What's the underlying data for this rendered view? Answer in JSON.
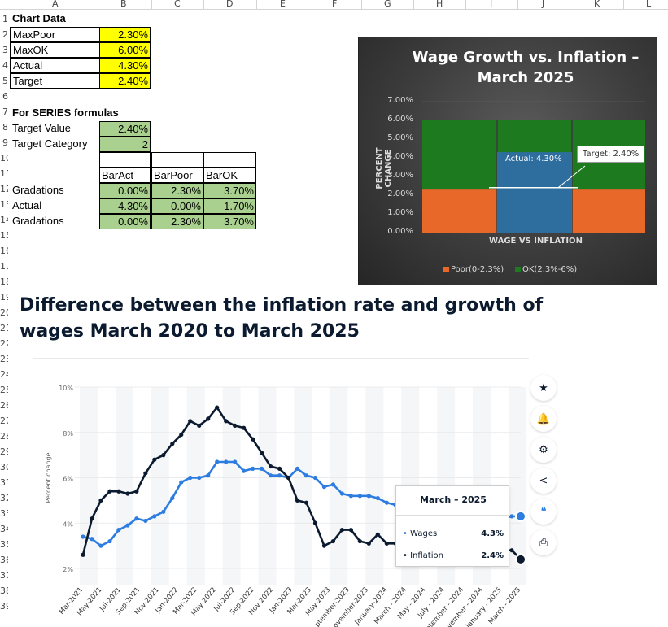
{
  "columns": [
    "A",
    "B",
    "C",
    "D",
    "E",
    "F",
    "G",
    "H",
    "I",
    "J",
    "K",
    "L"
  ],
  "row_numbers": [
    "1",
    "2",
    "3",
    "4",
    "5",
    "6",
    "7",
    "8",
    "9",
    "10",
    "11",
    "12",
    "13",
    "14",
    "15",
    "16",
    "17",
    "18",
    "19",
    "20",
    "21",
    "22",
    "23",
    "24",
    "25",
    "26",
    "27",
    "28",
    "29",
    "30",
    "31",
    "32",
    "33",
    "34",
    "35",
    "36",
    "37",
    "38",
    "39"
  ],
  "chart_data_table": {
    "header": "Chart Data",
    "rows": [
      {
        "label": "MaxPoor",
        "value": "2.30%"
      },
      {
        "label": "MaxOK",
        "value": "6.00%"
      },
      {
        "label": "Actual",
        "value": "4.30%"
      },
      {
        "label": "Target",
        "value": "2.40%"
      }
    ]
  },
  "series_table": {
    "header": "For SERIES formulas",
    "rows": [
      {
        "label": "Target Value",
        "value": "2.40%"
      },
      {
        "label": "Target Category",
        "value": "2"
      }
    ]
  },
  "bar_table": {
    "columns": [
      "BarAct",
      "BarPoor",
      "BarOK"
    ],
    "rows": [
      {
        "label": "Gradations",
        "values": [
          "0.00%",
          "2.30%",
          "3.70%"
        ]
      },
      {
        "label": "Actual",
        "values": [
          "4.30%",
          "0.00%",
          "1.70%"
        ]
      },
      {
        "label": "Gradations",
        "values": [
          "0.00%",
          "2.30%",
          "3.70%"
        ]
      }
    ]
  },
  "colors": {
    "poor": "#e8682a",
    "ok": "#1e7a1e",
    "actual": "#2e6e9e",
    "wages": "#2d7ce0",
    "inflation": "#0b1a2e",
    "yellow": "#ffff00",
    "green": "#a9d08e"
  },
  "chart_data": [
    {
      "type": "bar",
      "title": "Wage Growth vs. Inflation – March 2025",
      "xlabel": "WAGE VS INFLATION",
      "ylabel": "PERCENT CHANGE",
      "yticks": [
        "7.00%",
        "6.00%",
        "5.00%",
        "4.00%",
        "3.00%",
        "2.00%",
        "1.00%",
        "0.00%"
      ],
      "ylim": [
        0,
        7
      ],
      "poor_max": 2.3,
      "ok_max": 6.0,
      "actual": 4.3,
      "target": 2.4,
      "actual_label": "Actual: 4.30%",
      "target_label": "Target: 2.40%",
      "legend": [
        "Poor(0-2.3%)",
        "OK(2.3%-6%)"
      ],
      "legend_placement": "bottom"
    },
    {
      "type": "line",
      "title": "Difference between the inflation rate and growth of wages March 2020 to March 2025",
      "ylabel": "Percent change",
      "yticks": [
        "10%",
        "8%",
        "6%",
        "4%",
        "2%"
      ],
      "ylim": [
        2,
        10
      ],
      "x_tick_labels": [
        "Mar-2021",
        "May-2021",
        "Jul-2021",
        "Sep-2021",
        "Nov-2021",
        "Jan-2022",
        "Mar-2022",
        "May-2022",
        "Jul-2022",
        "Sep-2022",
        "Nov-2022",
        "Jan-2023",
        "Mar-2023",
        "May-2023",
        "ptember-2023",
        "ovember-2023",
        "January-2024",
        "March - 2024",
        "May - 2024",
        "July - 2024",
        "ptember - 2024",
        "ovember - 2024",
        "January - 2025",
        "March - 2025"
      ],
      "series": [
        {
          "name": "Wages",
          "values": [
            3.4,
            3.3,
            3.0,
            3.2,
            3.7,
            3.9,
            4.2,
            4.1,
            4.3,
            4.5,
            5.1,
            5.8,
            6.0,
            6.0,
            6.1,
            6.7,
            6.7,
            6.7,
            6.3,
            6.4,
            6.4,
            6.1,
            6.1,
            6.0,
            6.4,
            6.1,
            6.0,
            5.6,
            5.7,
            5.3,
            5.2,
            5.2,
            5.2,
            5.1,
            4.9,
            4.8,
            4.8,
            4.9,
            5.0,
            5.0,
            4.6,
            4.5,
            4.3,
            4.3,
            4.4,
            4.3,
            4.2,
            4.2,
            4.3,
            4.3
          ]
        },
        {
          "name": "Inflation",
          "values": [
            2.6,
            4.2,
            5.0,
            5.4,
            5.4,
            5.3,
            5.4,
            6.2,
            6.8,
            7.0,
            7.5,
            7.9,
            8.5,
            8.3,
            8.6,
            9.1,
            8.5,
            8.3,
            8.2,
            7.7,
            7.1,
            6.5,
            6.4,
            6.0,
            5.0,
            4.9,
            4.0,
            3.0,
            3.2,
            3.7,
            3.7,
            3.2,
            3.1,
            3.5,
            3.1,
            3.1,
            3.4,
            3.3,
            3.0,
            2.9,
            2.5,
            2.4,
            2.7,
            2.9,
            3.0,
            2.9,
            2.9,
            2.8,
            2.8,
            2.4
          ]
        }
      ],
      "tooltip": {
        "title": "March – 2025",
        "rows": [
          {
            "name": "Wages",
            "value": "4.3%"
          },
          {
            "name": "Inflation",
            "value": "2.4%"
          }
        ]
      }
    }
  ],
  "sidebar": {
    "buttons": [
      {
        "icon": "star-icon",
        "glyph": "★"
      },
      {
        "icon": "bell-icon",
        "glyph": "🔔"
      },
      {
        "icon": "gear-icon",
        "glyph": "⚙"
      },
      {
        "icon": "share-icon",
        "glyph": "<"
      },
      {
        "icon": "quote-icon",
        "glyph": "❝"
      },
      {
        "icon": "print-icon",
        "glyph": "⎙"
      }
    ]
  }
}
